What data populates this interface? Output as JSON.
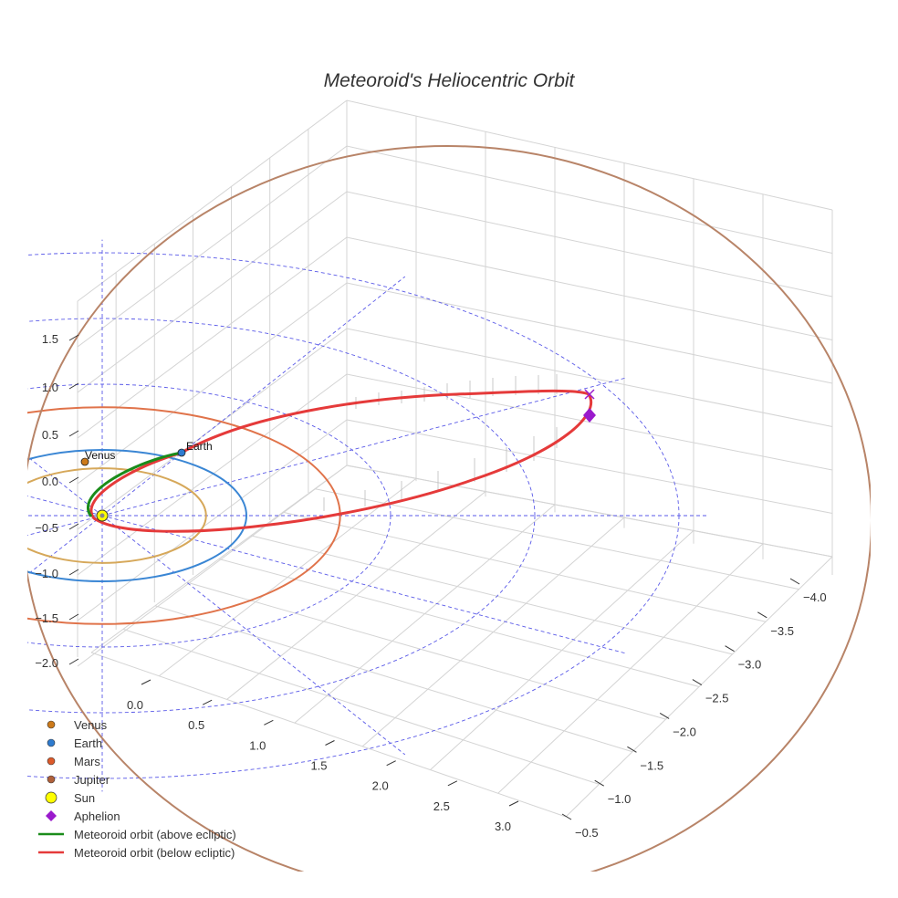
{
  "chart_data": {
    "type": "3d-line",
    "title": "Meteoroid's Heliocentric Orbit",
    "axes": {
      "left_vertical_ticks": [
        "1.5",
        "1.0",
        "0.5",
        "0.0",
        "−0.5",
        "−1.0",
        "−1.5",
        "−2.0"
      ],
      "front_ticks": [
        "0.0",
        "0.5",
        "1.0",
        "1.5",
        "2.0",
        "2.5",
        "3.0"
      ],
      "right_ticks": [
        "−4.0",
        "−3.5",
        "−3.0",
        "−2.5",
        "−2.0",
        "−1.5",
        "−1.0",
        "−0.5"
      ],
      "grid": true
    },
    "bodies": [
      {
        "name": "Venus",
        "orbit_radius_au": 0.72,
        "color": "#cc7a1a",
        "label": "Venus"
      },
      {
        "name": "Earth",
        "orbit_radius_au": 1.0,
        "color": "#2e7bcf",
        "label": "Earth"
      },
      {
        "name": "Mars",
        "orbit_radius_au": 1.52,
        "color": "#dd6a3a",
        "label": ""
      },
      {
        "name": "Jupiter",
        "orbit_radius_au": 5.2,
        "color": "#b07a5c",
        "label": ""
      }
    ],
    "orbit_colors": {
      "venus": "#d6a85a",
      "earth": "#3a86d4",
      "mars": "#e0734a",
      "jupiter": "#b88468",
      "grid_ref": "#5a5ae8"
    },
    "sun": {
      "name": "Sun",
      "color": "#ffff00"
    },
    "aphelion": {
      "name": "Aphelion",
      "color": "#9a1acc"
    },
    "meteoroid": {
      "above_ecliptic": {
        "name": "Meteoroid orbit (above ecliptic)",
        "color": "#1a8c1a"
      },
      "below_ecliptic": {
        "name": "Meteoroid orbit (below ecliptic)",
        "color": "#e53a3a"
      }
    },
    "legend": [
      {
        "label": "Venus",
        "kind": "dot",
        "color": "#cc7a1a"
      },
      {
        "label": "Earth",
        "kind": "dot",
        "color": "#2e7bcf"
      },
      {
        "label": "Mars",
        "kind": "dot",
        "color": "#dd5a2a"
      },
      {
        "label": "Jupiter",
        "kind": "dot",
        "color": "#b0603a"
      },
      {
        "label": "Sun",
        "kind": "sun",
        "color": "#ffff00"
      },
      {
        "label": "Aphelion",
        "kind": "diamond",
        "color": "#9a1acc"
      },
      {
        "label": "Meteoroid orbit (above ecliptic)",
        "kind": "line",
        "color": "#1a8c1a"
      },
      {
        "label": "Meteoroid orbit (below ecliptic)",
        "kind": "line",
        "color": "#e53a3a"
      }
    ]
  }
}
